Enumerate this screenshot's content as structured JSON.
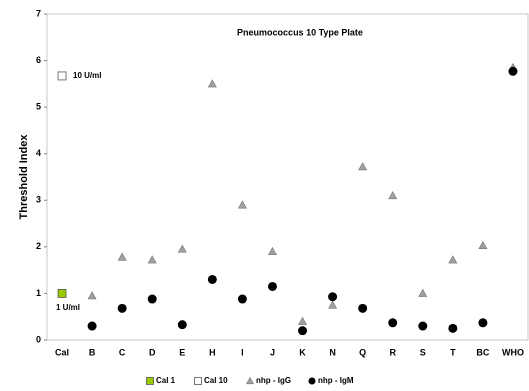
{
  "chart_data": {
    "type": "scatter",
    "title": "Pneumococcus 10 Type Plate",
    "y_label": "Threshold Index",
    "annotations": [
      "10 U/ml",
      "1 U/ml"
    ],
    "categories": [
      "Cal",
      "B",
      "C",
      "D",
      "E",
      "H",
      "I",
      "J",
      "K",
      "N",
      "Q",
      "R",
      "S",
      "T",
      "BC",
      "WHO"
    ],
    "series": [
      {
        "name": "Cal 1",
        "color": "#99cc00",
        "marker": "square",
        "values": [
          1.0,
          null,
          null,
          null,
          null,
          null,
          null,
          null,
          null,
          null,
          null,
          null,
          null,
          null,
          null,
          null
        ]
      },
      {
        "name": "Cal 10",
        "color": "#ffffff",
        "marker": "square",
        "values": [
          5.67,
          null,
          null,
          null,
          null,
          null,
          null,
          null,
          null,
          null,
          null,
          null,
          null,
          null,
          null,
          null
        ]
      },
      {
        "name": "nhp - IgG",
        "color": "#a0a0a0",
        "marker": "triangle",
        "values": [
          null,
          0.95,
          1.78,
          1.72,
          1.95,
          5.5,
          2.9,
          1.9,
          0.4,
          0.75,
          3.72,
          3.1,
          1.0,
          1.72,
          2.03,
          5.85
        ]
      },
      {
        "name": "nhp - IgM",
        "color": "#000000",
        "marker": "circle",
        "values": [
          null,
          0.3,
          0.68,
          0.88,
          0.33,
          1.3,
          0.88,
          1.15,
          0.2,
          0.93,
          0.68,
          0.37,
          0.3,
          0.25,
          0.37,
          5.77
        ]
      }
    ],
    "ylim": [
      0,
      7
    ],
    "yticks": [
      0,
      1,
      2,
      3,
      4,
      5,
      6,
      7
    ],
    "grid": false
  }
}
